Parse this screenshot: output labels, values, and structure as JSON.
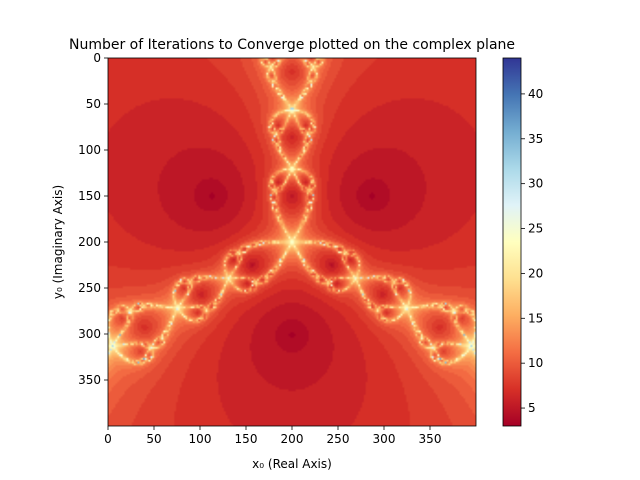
{
  "chart_data": {
    "type": "heatmap",
    "title": "Number of Iterations to Converge plotted on the complex plane",
    "xlabel": "x₀ (Real Axis)",
    "ylabel": "y₀ (Imaginary Axis)",
    "xlim": [
      0,
      400
    ],
    "ylim": [
      400,
      0
    ],
    "x_ticks": [
      0,
      50,
      100,
      150,
      200,
      250,
      300,
      350
    ],
    "y_ticks": [
      0,
      50,
      100,
      150,
      200,
      250,
      300,
      350
    ],
    "colorbar": {
      "colormap": "RdYlBu",
      "range": [
        3,
        44
      ],
      "ticks": [
        5,
        10,
        15,
        20,
        25,
        30,
        35,
        40
      ]
    },
    "roots": [
      [
        110,
        148
      ],
      [
        290,
        148
      ],
      [
        200,
        300
      ]
    ],
    "julia_junctions": [
      [
        200,
        200
      ],
      [
        200,
        55
      ],
      [
        270,
        255
      ],
      [
        130,
        255
      ]
    ],
    "colors": {
      "low": "#a50026",
      "mid": "#ffffbf",
      "high": "#313695"
    }
  }
}
